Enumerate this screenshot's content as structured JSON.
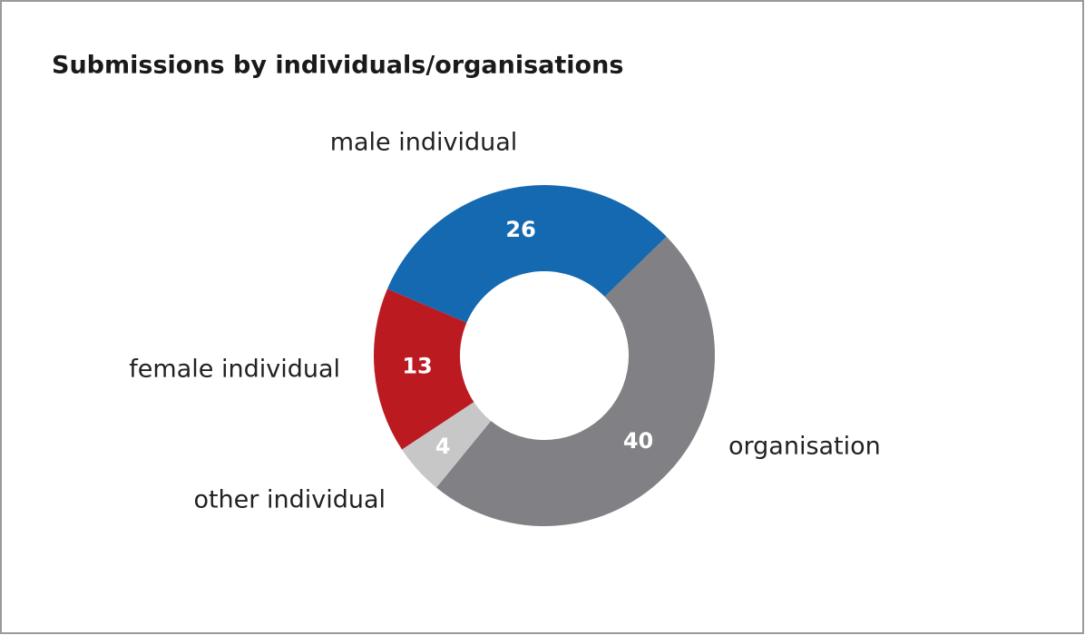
{
  "chart_data": {
    "type": "pie",
    "title": "Submissions by individuals/organisations",
    "categories": [
      "male individual",
      "organisation",
      "other individual",
      "female individual"
    ],
    "values": [
      26,
      40,
      4,
      13
    ],
    "colors": [
      "#1569b0",
      "#818084",
      "#c8c7c8",
      "#bb1a21"
    ]
  }
}
